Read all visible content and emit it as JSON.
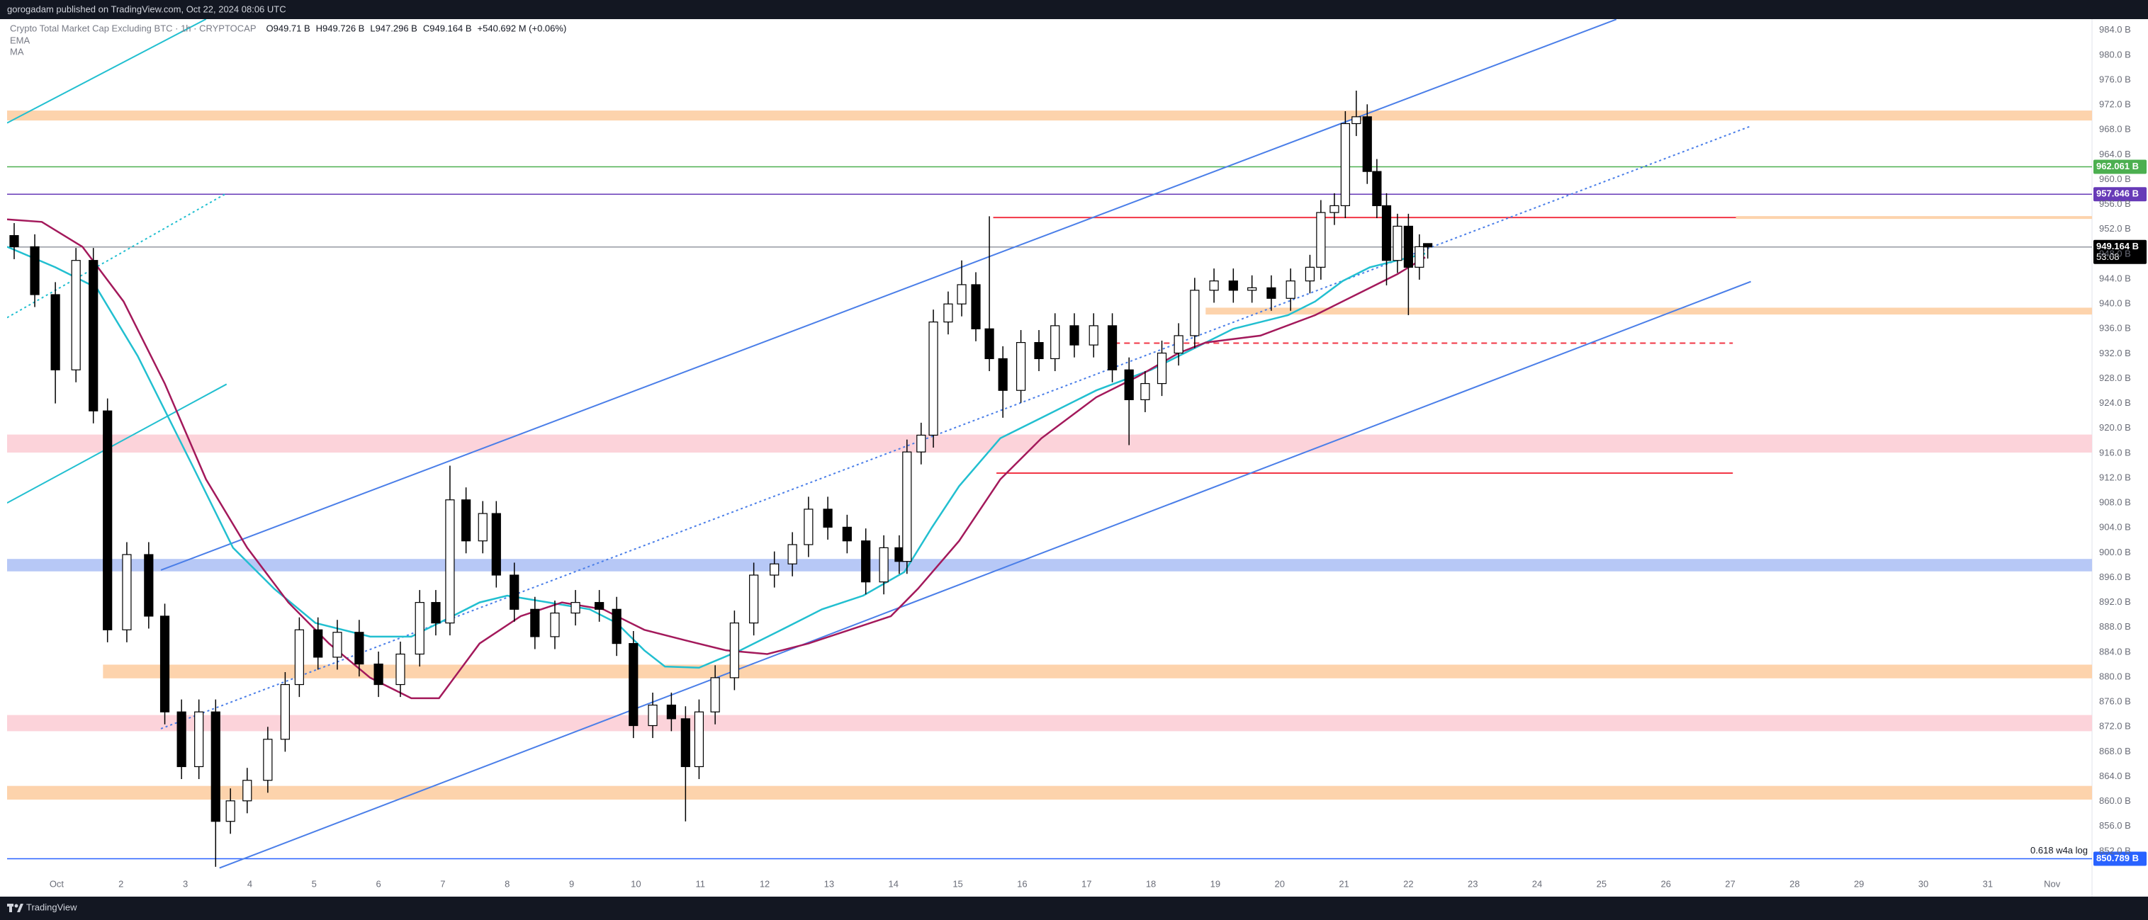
{
  "header": {
    "text": "gorogadam published on TradingView.com, Oct 22, 2024 08:06 UTC"
  },
  "footer": {
    "brand": "TradingView"
  },
  "chart_data": {
    "type": "candlestick",
    "legend": {
      "symbol": "Crypto Total Market Cap Excluding BTC · 1h · CRYPTOCAP",
      "ohlc": [
        "O949.71 B",
        "H949.726 B",
        "L947.296 B",
        "C949.164 B"
      ],
      "change": "+540.692 M (+0.06%)",
      "indicators": [
        "EMA",
        "MA"
      ]
    },
    "xlim": [
      0.23,
      32.62
    ],
    "ylim": [
      848.0,
      985.8
    ],
    "grid": false,
    "xticks": [
      {
        "value": 1,
        "label": "Oct"
      },
      2,
      3,
      4,
      5,
      6,
      7,
      8,
      9,
      10,
      11,
      12,
      13,
      14,
      15,
      16,
      17,
      18,
      19,
      20,
      21,
      22,
      23,
      24,
      25,
      26,
      27,
      28,
      29,
      30,
      31,
      {
        "value": 32,
        "label": "Nov"
      }
    ],
    "yticks": [
      {
        "value": 984,
        "label": "984.0 B"
      },
      {
        "value": 980,
        "label": "980.0 B"
      },
      {
        "value": 976,
        "label": "976.0 B"
      },
      {
        "value": 972,
        "label": "972.0 B"
      },
      {
        "value": 968,
        "label": "968.0 B"
      },
      {
        "value": 964,
        "label": "964.0 B"
      },
      {
        "value": 960,
        "label": "960.0 B"
      },
      {
        "value": 956,
        "label": "956.0 B"
      },
      {
        "value": 952,
        "label": "952.0 B"
      },
      {
        "value": 948,
        "label": "948.0 B"
      },
      {
        "value": 944,
        "label": "944.0 B"
      },
      {
        "value": 940,
        "label": "940.0 B"
      },
      {
        "value": 936,
        "label": "936.0 B"
      },
      {
        "value": 932,
        "label": "932.0 B"
      },
      {
        "value": 928,
        "label": "928.0 B"
      },
      {
        "value": 924,
        "label": "924.0 B"
      },
      {
        "value": 920,
        "label": "920.0 B"
      },
      {
        "value": 916,
        "label": "916.0 B"
      },
      {
        "value": 912,
        "label": "912.0 B"
      },
      {
        "value": 908,
        "label": "908.0 B"
      },
      {
        "value": 904,
        "label": "904.0 B"
      },
      {
        "value": 900,
        "label": "900.0 B"
      },
      {
        "value": 896,
        "label": "896.0 B"
      },
      {
        "value": 892,
        "label": "892.0 B"
      },
      {
        "value": 888,
        "label": "888.0 B"
      },
      {
        "value": 884,
        "label": "884.0 B"
      },
      {
        "value": 880,
        "label": "880.0 B"
      },
      {
        "value": 876,
        "label": "876.0 B"
      },
      {
        "value": 872,
        "label": "872.0 B"
      },
      {
        "value": 868,
        "label": "868.0 B"
      },
      {
        "value": 864,
        "label": "864.0 B"
      },
      {
        "value": 860,
        "label": "860.0 B"
      },
      {
        "value": 856,
        "label": "856.0 B"
      },
      {
        "value": 852,
        "label": "852.0 B"
      }
    ],
    "candles": {
      "x": [
        0.34,
        0.66,
        0.98,
        1.3,
        1.57,
        1.79,
        2.09,
        2.43,
        2.68,
        2.94,
        3.21,
        3.47,
        3.7,
        3.96,
        4.28,
        4.55,
        4.77,
        5.06,
        5.36,
        5.7,
        6.0,
        6.34,
        6.64,
        6.89,
        7.11,
        7.36,
        7.62,
        7.83,
        8.11,
        8.43,
        8.74,
        9.06,
        9.43,
        9.7,
        9.96,
        10.26,
        10.55,
        10.77,
        10.98,
        11.23,
        11.53,
        11.83,
        12.15,
        12.43,
        12.68,
        12.98,
        13.28,
        13.57,
        13.85,
        14.09,
        14.21,
        14.43,
        14.62,
        14.85,
        15.06,
        15.28,
        15.49,
        15.7,
        15.98,
        16.26,
        16.51,
        16.81,
        17.11,
        17.4,
        17.66,
        17.91,
        18.17,
        18.43,
        18.68,
        18.98,
        19.28,
        19.57,
        19.87,
        20.17,
        20.47,
        20.64,
        20.85,
        21.02,
        21.19,
        21.36,
        21.51,
        21.66,
        21.83,
        22.0,
        22.17,
        22.3
      ],
      "open": [
        951.0,
        949.2,
        941.5,
        929.4,
        947.0,
        922.8,
        887.6,
        899.7,
        889.8,
        874.4,
        865.6,
        874.4,
        856.8,
        860.1,
        863.4,
        870.0,
        878.8,
        887.6,
        883.2,
        887.2,
        882.1,
        878.8,
        883.7,
        892.0,
        888.7,
        908.5,
        901.9,
        906.3,
        896.4,
        890.9,
        886.5,
        890.3,
        892.0,
        890.9,
        885.4,
        872.2,
        875.5,
        873.3,
        865.6,
        874.4,
        879.9,
        888.7,
        896.4,
        898.2,
        901.3,
        907.0,
        904.1,
        901.9,
        895.3,
        900.8,
        898.6,
        916.2,
        918.9,
        937.1,
        940.0,
        943.1,
        936.0,
        931.2,
        926.1,
        933.8,
        931.2,
        936.5,
        933.4,
        936.5,
        929.4,
        924.6,
        927.2,
        932.1,
        934.9,
        942.2,
        943.7,
        942.2,
        942.6,
        940.9,
        943.7,
        945.9,
        954.7,
        955.8,
        969.0,
        970.1,
        961.3,
        955.8,
        947.0,
        952.5,
        945.9,
        949.71
      ],
      "high": [
        953.0,
        951.2,
        943.5,
        949.0,
        949.0,
        924.8,
        901.7,
        901.7,
        891.8,
        876.4,
        876.4,
        876.4,
        862.1,
        865.4,
        872.0,
        880.8,
        889.6,
        889.6,
        889.2,
        889.2,
        884.1,
        885.7,
        894.0,
        894.0,
        914.0,
        910.5,
        908.3,
        908.3,
        898.4,
        892.9,
        892.3,
        894.0,
        894.0,
        892.9,
        887.4,
        877.5,
        877.5,
        875.3,
        876.4,
        881.9,
        890.7,
        898.4,
        900.2,
        903.3,
        909.0,
        909.0,
        906.1,
        903.9,
        902.8,
        902.8,
        918.2,
        920.9,
        939.1,
        942.0,
        947.0,
        945.1,
        954.1,
        933.2,
        935.8,
        935.8,
        938.5,
        938.5,
        938.5,
        938.5,
        931.4,
        929.2,
        934.1,
        936.9,
        944.2,
        945.7,
        945.7,
        944.6,
        944.6,
        945.7,
        947.9,
        956.7,
        957.8,
        971.0,
        974.3,
        972.1,
        963.3,
        957.8,
        954.5,
        954.5,
        951.2,
        949.726
      ],
      "low": [
        947.2,
        939.5,
        924.0,
        927.4,
        920.8,
        885.6,
        885.6,
        887.8,
        872.4,
        863.6,
        863.6,
        849.5,
        854.8,
        858.1,
        861.4,
        868.0,
        876.8,
        881.2,
        881.2,
        880.1,
        876.8,
        876.8,
        881.7,
        886.7,
        886.7,
        899.9,
        899.9,
        894.4,
        888.9,
        884.5,
        884.5,
        888.3,
        888.9,
        883.4,
        870.2,
        870.2,
        871.3,
        856.8,
        863.6,
        872.4,
        877.9,
        886.7,
        894.4,
        896.2,
        899.3,
        902.1,
        899.9,
        893.3,
        893.3,
        896.6,
        896.6,
        914.2,
        916.9,
        935.1,
        938.0,
        934.0,
        929.2,
        921.7,
        924.1,
        929.2,
        929.2,
        931.4,
        931.4,
        927.4,
        917.3,
        922.6,
        925.2,
        930.1,
        932.9,
        940.2,
        940.2,
        940.2,
        938.9,
        938.9,
        941.7,
        943.9,
        952.7,
        953.8,
        967.0,
        959.3,
        953.8,
        943.0,
        945.0,
        938.2,
        943.9,
        947.296
      ],
      "close": [
        949.2,
        941.5,
        929.4,
        947.0,
        922.8,
        887.6,
        899.7,
        889.8,
        874.4,
        865.6,
        874.4,
        856.8,
        860.1,
        863.4,
        870.0,
        878.8,
        887.6,
        883.2,
        887.2,
        882.1,
        878.8,
        883.7,
        892.0,
        888.7,
        908.5,
        901.9,
        906.3,
        896.4,
        890.9,
        886.5,
        890.3,
        892.0,
        890.9,
        885.4,
        872.2,
        875.5,
        873.3,
        865.6,
        874.4,
        879.9,
        888.7,
        896.4,
        898.2,
        901.3,
        907.0,
        904.1,
        901.9,
        895.3,
        900.8,
        898.6,
        916.2,
        918.9,
        937.1,
        940.0,
        943.1,
        936.0,
        931.2,
        926.1,
        933.8,
        931.2,
        936.5,
        933.4,
        936.5,
        929.4,
        924.6,
        927.2,
        932.1,
        934.9,
        942.2,
        943.7,
        942.2,
        942.6,
        940.9,
        943.7,
        945.9,
        954.7,
        955.8,
        969.0,
        970.1,
        961.3,
        955.8,
        947.0,
        952.5,
        945.9,
        949.2,
        949.164
      ]
    },
    "series": [
      {
        "name": "EMA",
        "color": "#22bfd0",
        "x": [
          0.23,
          0.98,
          1.62,
          2.26,
          3.11,
          3.74,
          4.38,
          5.02,
          5.87,
          6.51,
          7.15,
          7.57,
          8.0,
          8.64,
          9.28,
          9.7,
          10.13,
          10.45,
          10.98,
          11.62,
          12.26,
          12.89,
          13.53,
          14.17,
          14.6,
          15.02,
          15.66,
          16.3,
          17.15,
          18.0,
          18.64,
          19.28,
          20.13,
          20.55,
          20.98,
          21.4,
          21.83,
          22.26
        ],
        "values": [
          949.2,
          945.9,
          942.6,
          931.6,
          914.0,
          900.8,
          894.2,
          888.7,
          886.5,
          886.5,
          889.8,
          892.0,
          893.1,
          892.0,
          890.9,
          888.7,
          884.3,
          881.7,
          881.5,
          884.3,
          887.6,
          890.9,
          893.1,
          896.9,
          904.1,
          910.7,
          918.4,
          921.7,
          926.1,
          929.4,
          932.7,
          936.0,
          938.2,
          940.4,
          943.7,
          945.9,
          947.0,
          948.1
        ]
      },
      {
        "name": "MA",
        "color": "#a3195b",
        "x": [
          0.23,
          0.77,
          1.4,
          2.04,
          2.68,
          3.32,
          3.96,
          4.6,
          5.23,
          5.87,
          6.51,
          6.94,
          7.57,
          8.21,
          8.85,
          9.49,
          10.13,
          10.77,
          11.4,
          12.04,
          12.68,
          13.32,
          13.96,
          14.38,
          15.02,
          15.66,
          16.3,
          17.15,
          17.79,
          18.43,
          18.85,
          19.7,
          20.55,
          21.19,
          21.83,
          22.26
        ],
        "values": [
          953.6,
          953.2,
          949.2,
          940.4,
          927.2,
          911.8,
          900.8,
          892.0,
          885.4,
          879.9,
          876.6,
          876.6,
          885.4,
          889.8,
          892.0,
          890.9,
          887.6,
          885.9,
          884.3,
          883.7,
          885.4,
          887.6,
          889.8,
          894.2,
          901.9,
          911.8,
          918.4,
          925.0,
          928.3,
          932.1,
          933.8,
          934.9,
          938.2,
          941.5,
          944.8,
          947.5
        ]
      }
    ],
    "zones": [
      {
        "from": 969.5,
        "to": 971.1,
        "color": "#fdd3ac"
      },
      {
        "from": 938.3,
        "to": 939.4,
        "color": "#fdd3ac",
        "x0": 18.85
      },
      {
        "from": 916.1,
        "to": 919.0,
        "color": "#fcd3da"
      },
      {
        "from": 897.0,
        "to": 899.0,
        "color": "#b7c8f6"
      },
      {
        "from": 879.8,
        "to": 882.0,
        "color": "#fdd3ac",
        "x0": 1.72
      },
      {
        "from": 871.3,
        "to": 873.9,
        "color": "#fcd3da"
      },
      {
        "from": 860.3,
        "to": 862.5,
        "color": "#fdd3ac"
      }
    ],
    "segments": [
      {
        "y": 953.9,
        "x0": 15.55,
        "x1": 27.09,
        "color": "#f23645"
      },
      {
        "y": 912.8,
        "x0": 15.6,
        "x1": 27.04,
        "color": "#f23645"
      },
      {
        "y": 933.7,
        "x0": 17.43,
        "x1": 27.04,
        "color": "#f23645",
        "dashed": true
      },
      {
        "y": 953.9,
        "x0": 27.09,
        "color": "#fdd3ac"
      }
    ],
    "trendlines": [
      {
        "x": [
          2.62,
          25.23
        ],
        "y": [
          897.2,
          985.76
        ],
        "color": "#4a7ee8"
      },
      {
        "x": [
          3.53,
          27.32
        ],
        "y": [
          849.3,
          943.6
        ],
        "color": "#4a7ee8"
      },
      {
        "x": [
          2.62,
          27.32
        ],
        "y": [
          871.7,
          968.6
        ],
        "color": "#4a7ee8",
        "dashed": true
      },
      {
        "x": [
          0.23,
          3.32
        ],
        "y": [
          969.1,
          985.8
        ],
        "color": "#22bfd0"
      },
      {
        "x": [
          0.23,
          3.64
        ],
        "y": [
          908.0,
          927.1
        ],
        "color": "#22bfd0"
      },
      {
        "x": [
          0.23,
          3.64
        ],
        "y": [
          937.8,
          957.8
        ],
        "color": "#22bfd0",
        "dashed": true
      }
    ],
    "price_lines": [
      {
        "value": 962.061,
        "label": "962.061 B",
        "color": "#4caf50"
      },
      {
        "value": 957.646,
        "label": "957.646 B",
        "color": "#673ab7"
      },
      {
        "value": 949.164,
        "label": "949.164 B",
        "color": "#9598a1",
        "label_bg": "#000000",
        "countdown": "53:08"
      },
      {
        "value": 850.789,
        "label": "850.789 B",
        "color": "#2962ff",
        "note": "0.618  w4a log"
      }
    ]
  }
}
